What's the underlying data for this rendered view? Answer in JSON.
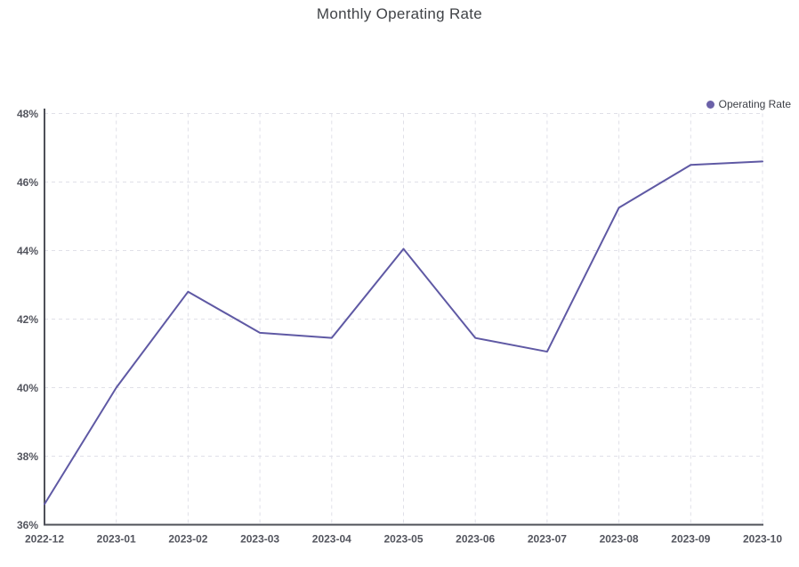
{
  "chart_data": {
    "type": "line",
    "title": "Monthly Operating Rate",
    "xlabel": "",
    "ylabel": "",
    "categories": [
      "2022-12",
      "2023-01",
      "2023-02",
      "2023-03",
      "2023-04",
      "2023-05",
      "2023-06",
      "2023-07",
      "2023-08",
      "2023-09",
      "2023-10"
    ],
    "series": [
      {
        "name": "Operating Rate",
        "values": [
          36.6,
          40.0,
          42.8,
          41.6,
          41.45,
          44.05,
          41.45,
          41.05,
          45.25,
          46.5,
          46.6
        ]
      }
    ],
    "ylim": [
      36,
      48
    ],
    "ytick_step": 2,
    "ytick_suffix": "%",
    "grid": "dashed",
    "legend_position": "top-right",
    "show_point_markers": false,
    "colors": {
      "line": "#5f59a4",
      "legend_marker": "#6b61a8",
      "axis": "#4e5058",
      "grid": "#e0e0e8",
      "tick_label": "#53555e",
      "title": "#404347",
      "legend_text": "#3d4047",
      "background": "#ffffff"
    }
  }
}
